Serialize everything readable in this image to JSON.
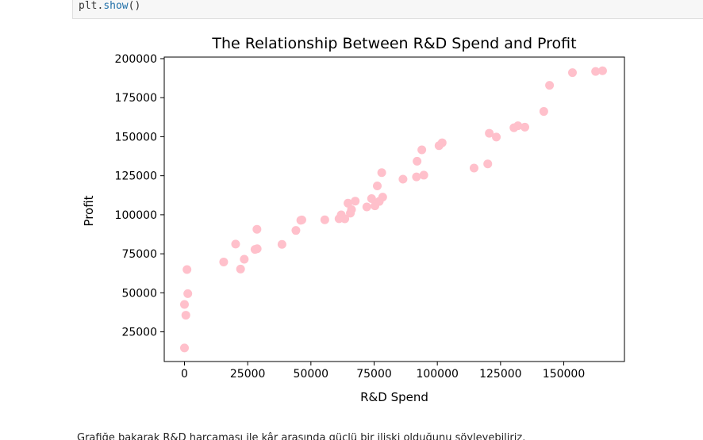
{
  "code": {
    "object": "plt",
    "dot": ".",
    "method": "show",
    "parens": "()"
  },
  "chart_data": {
    "type": "scatter",
    "title": "The Relationship Between R&D Spend and Profit",
    "xlabel": "R&D Spend",
    "ylabel": "Profit",
    "xlim": [
      -8000,
      174000
    ],
    "ylim": [
      6000,
      201000
    ],
    "xticks": [
      0,
      25000,
      50000,
      75000,
      100000,
      125000,
      150000
    ],
    "yticks": [
      25000,
      50000,
      75000,
      100000,
      125000,
      150000,
      175000,
      200000
    ],
    "marker_color": "#ffc0cb",
    "series": [
      {
        "points": [
          [
            165349,
            192262
          ],
          [
            162598,
            191792
          ],
          [
            153442,
            191050
          ],
          [
            144372,
            182902
          ],
          [
            142107,
            166188
          ],
          [
            131877,
            156991
          ],
          [
            134615,
            156123
          ],
          [
            130298,
            155753
          ],
          [
            120543,
            152212
          ],
          [
            123335,
            149760
          ],
          [
            101913,
            146122
          ],
          [
            100672,
            144259
          ],
          [
            93864,
            141586
          ],
          [
            91992,
            134307
          ],
          [
            119943,
            132602
          ],
          [
            114524,
            129917
          ],
          [
            78013,
            126993
          ],
          [
            94657,
            125371
          ],
          [
            91749,
            124267
          ],
          [
            86420,
            122777
          ],
          [
            76254,
            118474
          ],
          [
            78389,
            111313
          ],
          [
            73995,
            110352
          ],
          [
            67533,
            108734
          ],
          [
            77044,
            108552
          ],
          [
            64665,
            107404
          ],
          [
            75329,
            105734
          ],
          [
            72108,
            105008
          ],
          [
            66052,
            103282
          ],
          [
            65606,
            101004
          ],
          [
            61994,
            99938
          ],
          [
            61136,
            97484
          ],
          [
            63409,
            97427
          ],
          [
            55494,
            96779
          ],
          [
            46427,
            96713
          ],
          [
            46014,
            96480
          ],
          [
            28664,
            90708
          ],
          [
            44070,
            89949
          ],
          [
            20230,
            81230
          ],
          [
            38559,
            81006
          ],
          [
            28755,
            78240
          ],
          [
            27893,
            77799
          ],
          [
            23641,
            71499
          ],
          [
            15506,
            69759
          ],
          [
            22178,
            65201
          ],
          [
            1001,
            64927
          ],
          [
            1315,
            49491
          ],
          [
            0,
            42560
          ],
          [
            543,
            35673
          ],
          [
            0,
            14681
          ]
        ]
      }
    ]
  },
  "footer": {
    "text": "Grafiğe bakarak R&D harcaması ile kâr arasında güçlü bir ilişki olduğunu söyleyebiliriz."
  }
}
